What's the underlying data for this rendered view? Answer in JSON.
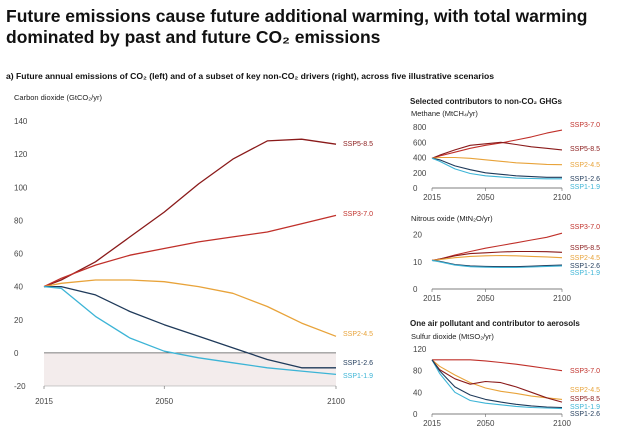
{
  "header": {
    "title": "Future emissions cause future additional warming, with total warming dominated by past and future CO₂ emissions",
    "subtitle": "a) Future annual emissions of CO₂ (left) and of a subset of key non-CO₂ drivers (right), across five illustrative scenarios",
    "nonco2_heading": "Selected contributors to non-CO₂ GHGs",
    "aerosol_heading": "One air pollutant and contributor to aerosols"
  },
  "colors": {
    "SSP1-1.9": "#3cb4d6",
    "SSP1-2.6": "#1f3a5a",
    "SSP2-4.5": "#e8a33a",
    "SSP3-7.0": "#c0302a",
    "SSP5-8.5": "#8a1a1a"
  },
  "chart_data": [
    {
      "type": "line",
      "id": "co2",
      "ylabel": "Carbon dioxide (GtCO₂/yr)",
      "ylim": [
        -20,
        140
      ],
      "yticks": [
        -20,
        0,
        20,
        40,
        60,
        80,
        100,
        120,
        140
      ],
      "xlim": [
        2015,
        2100
      ],
      "xticks": [
        2015,
        2050,
        2100
      ],
      "x": [
        2015,
        2020,
        2030,
        2040,
        2050,
        2060,
        2070,
        2080,
        2090,
        2100
      ],
      "series": [
        {
          "name": "SSP5-8.5",
          "values": [
            40,
            44,
            55,
            70,
            85,
            102,
            117,
            128,
            129,
            126
          ]
        },
        {
          "name": "SSP3-7.0",
          "values": [
            40,
            45,
            53,
            59,
            63,
            67,
            70,
            73,
            78,
            83
          ]
        },
        {
          "name": "SSP2-4.5",
          "values": [
            40,
            42,
            44,
            44,
            43,
            40,
            36,
            28,
            18,
            10
          ]
        },
        {
          "name": "SSP1-2.6",
          "values": [
            40,
            40,
            35,
            25,
            17,
            10,
            3,
            -4,
            -9,
            -9
          ]
        },
        {
          "name": "SSP1-1.9",
          "values": [
            40,
            39,
            22,
            9,
            1,
            -3,
            -6,
            -9,
            -11,
            -13
          ]
        }
      ]
    },
    {
      "type": "line",
      "id": "methane",
      "ylabel": "Methane (MtCH₄/yr)",
      "ylim": [
        0,
        800
      ],
      "yticks": [
        0,
        200,
        400,
        600,
        800
      ],
      "xlim": [
        2015,
        2100
      ],
      "xticks": [
        2015,
        2050,
        2100
      ],
      "x": [
        2015,
        2020,
        2030,
        2040,
        2050,
        2060,
        2070,
        2080,
        2090,
        2100
      ],
      "series": [
        {
          "name": "SSP3-7.0",
          "values": [
            390,
            420,
            470,
            520,
            560,
            590,
            630,
            670,
            720,
            760
          ]
        },
        {
          "name": "SSP5-8.5",
          "values": [
            390,
            430,
            500,
            560,
            580,
            600,
            570,
            540,
            520,
            500
          ]
        },
        {
          "name": "SSP2-4.5",
          "values": [
            390,
            400,
            400,
            390,
            370,
            350,
            330,
            320,
            310,
            305
          ]
        },
        {
          "name": "SSP1-2.6",
          "values": [
            390,
            370,
            290,
            240,
            200,
            180,
            160,
            150,
            140,
            140
          ]
        },
        {
          "name": "SSP1-1.9",
          "values": [
            390,
            350,
            250,
            190,
            160,
            145,
            130,
            125,
            120,
            120
          ]
        }
      ]
    },
    {
      "type": "line",
      "id": "n2o",
      "ylabel": "Nitrous oxide (MtN₂O/yr)",
      "ylim": [
        0,
        25
      ],
      "yticks": [
        0,
        10,
        20
      ],
      "xlim": [
        2015,
        2100
      ],
      "xticks": [
        2015,
        2050,
        2100
      ],
      "x": [
        2015,
        2020,
        2030,
        2040,
        2050,
        2060,
        2070,
        2080,
        2090,
        2100
      ],
      "series": [
        {
          "name": "SSP3-7.0",
          "values": [
            10.5,
            11,
            12.5,
            13.8,
            15,
            16,
            17,
            18,
            19,
            20.5
          ]
        },
        {
          "name": "SSP5-8.5",
          "values": [
            10.5,
            11,
            12.2,
            13,
            13.3,
            13.6,
            13.8,
            13.8,
            13.7,
            13.5
          ]
        },
        {
          "name": "SSP2-4.5",
          "values": [
            10.5,
            10.8,
            11.5,
            12,
            12.2,
            12.3,
            12.2,
            12,
            11.8,
            11.5
          ]
        },
        {
          "name": "SSP1-2.6",
          "values": [
            10.5,
            10.2,
            9,
            8.5,
            8.3,
            8.2,
            8.2,
            8.4,
            8.6,
            8.8
          ]
        },
        {
          "name": "SSP1-1.9",
          "values": [
            10.5,
            10,
            8.8,
            8.2,
            8,
            7.9,
            7.9,
            8.1,
            8.3,
            8.5
          ]
        }
      ]
    },
    {
      "type": "line",
      "id": "so2",
      "ylabel": "Sulfur dioxide (MtSO₂/yr)",
      "ylim": [
        0,
        120
      ],
      "yticks": [
        0,
        40,
        80,
        120
      ],
      "xlim": [
        2015,
        2100
      ],
      "xticks": [
        2015,
        2050,
        2100
      ],
      "x": [
        2015,
        2020,
        2030,
        2040,
        2050,
        2060,
        2070,
        2080,
        2090,
        2100
      ],
      "series": [
        {
          "name": "SSP3-7.0",
          "values": [
            100,
            100,
            100,
            100,
            98,
            95,
            92,
            88,
            84,
            80
          ]
        },
        {
          "name": "SSP2-4.5",
          "values": [
            100,
            88,
            72,
            58,
            48,
            42,
            38,
            33,
            30,
            27
          ]
        },
        {
          "name": "SSP5-8.5",
          "values": [
            100,
            82,
            65,
            55,
            60,
            58,
            50,
            40,
            30,
            22
          ]
        },
        {
          "name": "SSP1-1.9",
          "values": [
            100,
            75,
            40,
            25,
            20,
            17,
            14,
            12,
            11,
            10
          ]
        },
        {
          "name": "SSP1-2.6",
          "values": [
            100,
            80,
            50,
            35,
            27,
            22,
            18,
            15,
            13,
            12
          ]
        }
      ]
    }
  ],
  "end_labels": {
    "co2": [
      "SSP5-8.5",
      "SSP3-7.0",
      "SSP2-4.5",
      "SSP1-2.6",
      "SSP1-1.9"
    ],
    "methane": [
      "SSP3-7.0",
      "SSP5-8.5",
      "SSP2-4.5",
      "SSP1-2.6",
      "SSP1-1.9"
    ],
    "n2o": [
      "SSP3-7.0",
      "SSP5-8.5",
      "SSP2-4.5",
      "SSP1-2.6",
      "SSP1-1.9"
    ],
    "so2": [
      "SSP3-7.0",
      "SSP2-4.5",
      "SSP5-8.5",
      "SSP1-1.9",
      "SSP1-2.6"
    ]
  }
}
